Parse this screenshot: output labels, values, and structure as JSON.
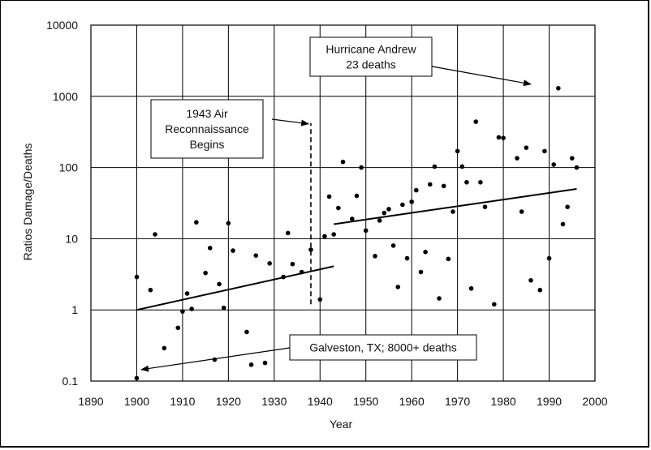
{
  "chart_data": {
    "type": "scatter",
    "title": "",
    "xlabel": "Year",
    "ylabel": "Ratios Damage/Deaths",
    "xlim": [
      1890,
      2000
    ],
    "ylim": [
      0.1,
      10000
    ],
    "y_scale": "log",
    "grid": true,
    "x_ticks": [
      "1890",
      "1900",
      "1910",
      "1920",
      "1930",
      "1940",
      "1950",
      "1960",
      "1970",
      "1980",
      "1990",
      "2000"
    ],
    "y_ticks": [
      "0.1",
      "1",
      "10",
      "100",
      "1000",
      "10000"
    ],
    "points": [
      {
        "x": 1900,
        "y": 0.11
      },
      {
        "x": 1900,
        "y": 2.9
      },
      {
        "x": 1903,
        "y": 1.9
      },
      {
        "x": 1904,
        "y": 11.5
      },
      {
        "x": 1906,
        "y": 0.29
      },
      {
        "x": 1909,
        "y": 0.56
      },
      {
        "x": 1910,
        "y": 0.95
      },
      {
        "x": 1911,
        "y": 1.7
      },
      {
        "x": 1912,
        "y": 1.03
      },
      {
        "x": 1913,
        "y": 17
      },
      {
        "x": 1915,
        "y": 3.3
      },
      {
        "x": 1916,
        "y": 7.4
      },
      {
        "x": 1917,
        "y": 0.2
      },
      {
        "x": 1918,
        "y": 2.3
      },
      {
        "x": 1919,
        "y": 1.07
      },
      {
        "x": 1920,
        "y": 16.5
      },
      {
        "x": 1921,
        "y": 6.8
      },
      {
        "x": 1924,
        "y": 0.49
      },
      {
        "x": 1925,
        "y": 0.17
      },
      {
        "x": 1926,
        "y": 5.8
      },
      {
        "x": 1928,
        "y": 0.18
      },
      {
        "x": 1929,
        "y": 4.5
      },
      {
        "x": 1932,
        "y": 2.9
      },
      {
        "x": 1933,
        "y": 12
      },
      {
        "x": 1934,
        "y": 4.4
      },
      {
        "x": 1935,
        "y": 0.42
      },
      {
        "x": 1936,
        "y": 3.4
      },
      {
        "x": 1938,
        "y": 7
      },
      {
        "x": 1940,
        "y": 1.4
      },
      {
        "x": 1941,
        "y": 10.8
      },
      {
        "x": 1942,
        "y": 39
      },
      {
        "x": 1943,
        "y": 11.5
      },
      {
        "x": 1944,
        "y": 27
      },
      {
        "x": 1945,
        "y": 120
      },
      {
        "x": 1947,
        "y": 19
      },
      {
        "x": 1948,
        "y": 40
      },
      {
        "x": 1949,
        "y": 100
      },
      {
        "x": 1950,
        "y": 13
      },
      {
        "x": 1952,
        "y": 5.7
      },
      {
        "x": 1953,
        "y": 18
      },
      {
        "x": 1954,
        "y": 23
      },
      {
        "x": 1955,
        "y": 26
      },
      {
        "x": 1956,
        "y": 8
      },
      {
        "x": 1957,
        "y": 2.1
      },
      {
        "x": 1958,
        "y": 30
      },
      {
        "x": 1959,
        "y": 5.3
      },
      {
        "x": 1960,
        "y": 33
      },
      {
        "x": 1961,
        "y": 48
      },
      {
        "x": 1962,
        "y": 3.4
      },
      {
        "x": 1963,
        "y": 6.5
      },
      {
        "x": 1964,
        "y": 58
      },
      {
        "x": 1965,
        "y": 103
      },
      {
        "x": 1966,
        "y": 1.45
      },
      {
        "x": 1967,
        "y": 55
      },
      {
        "x": 1968,
        "y": 5.2
      },
      {
        "x": 1969,
        "y": 24
      },
      {
        "x": 1970,
        "y": 170
      },
      {
        "x": 1971,
        "y": 103
      },
      {
        "x": 1972,
        "y": 62
      },
      {
        "x": 1973,
        "y": 2
      },
      {
        "x": 1974,
        "y": 440
      },
      {
        "x": 1975,
        "y": 62
      },
      {
        "x": 1976,
        "y": 28
      },
      {
        "x": 1978,
        "y": 1.2
      },
      {
        "x": 1979,
        "y": 265
      },
      {
        "x": 1980,
        "y": 260
      },
      {
        "x": 1983,
        "y": 135
      },
      {
        "x": 1984,
        "y": 24
      },
      {
        "x": 1985,
        "y": 190
      },
      {
        "x": 1986,
        "y": 2.6
      },
      {
        "x": 1988,
        "y": 1.9
      },
      {
        "x": 1989,
        "y": 170
      },
      {
        "x": 1990,
        "y": 5.3
      },
      {
        "x": 1991,
        "y": 110
      },
      {
        "x": 1992,
        "y": 1300
      },
      {
        "x": 1993,
        "y": 16
      },
      {
        "x": 1994,
        "y": 28
      },
      {
        "x": 1995,
        "y": 135
      },
      {
        "x": 1996,
        "y": 100
      }
    ],
    "trend_lines": [
      {
        "x": [
          1900,
          1943
        ],
        "y": [
          1.0,
          4.1
        ]
      },
      {
        "x": [
          1943,
          1996
        ],
        "y": [
          16,
          50
        ]
      }
    ],
    "divider": {
      "x": 1938,
      "y": [
        1.2,
        420
      ]
    },
    "annotations": [
      {
        "id": "andrew",
        "lines": [
          "Hurricane Andrew",
          "23 deaths"
        ],
        "arrow_to": {
          "x": 1986,
          "y": 1480
        }
      },
      {
        "id": "recon",
        "lines": [
          "1943 Air",
          "Reconnaissance",
          "Begins"
        ],
        "arrow_to": {
          "x": 1937.5,
          "y": 410
        }
      },
      {
        "id": "galveston",
        "lines": [
          "Galveston, TX; 8000+ deaths"
        ],
        "arrow_to": {
          "x": 1901,
          "y": 0.145
        }
      }
    ]
  }
}
